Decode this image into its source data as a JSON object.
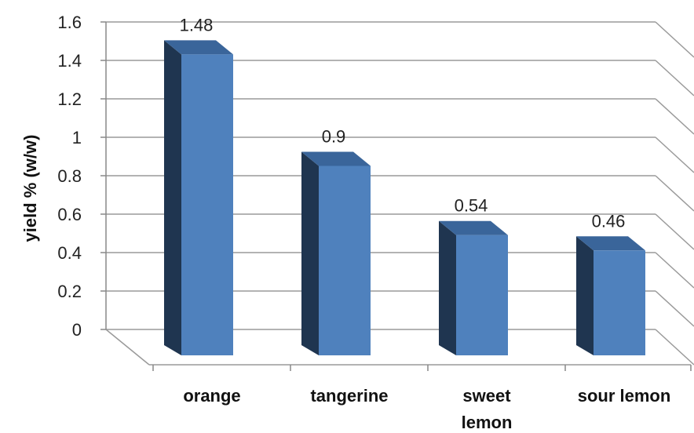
{
  "chart_data": {
    "type": "bar",
    "categories": [
      [
        "orange"
      ],
      [
        "tangerine"
      ],
      [
        "sweet",
        "lemon"
      ],
      [
        "sour lemon"
      ]
    ],
    "values": [
      1.48,
      0.9,
      0.54,
      0.46
    ],
    "data_labels": [
      "1.48",
      "0.9",
      "0.54",
      "0.46"
    ],
    "ylabel": "yield % (w/w)",
    "ylim": [
      0,
      1.6
    ],
    "yticks": [
      "0",
      "0.2",
      "0.4",
      "0.6",
      "0.8",
      "1",
      "1.2",
      "1.4",
      "1.6"
    ],
    "grid": true,
    "style": "3d-column",
    "colors": {
      "bar_front": "#4f81bd",
      "bar_side": "#1f3550",
      "bar_top": "#3a659a",
      "grid": "#9a9a9a"
    }
  }
}
